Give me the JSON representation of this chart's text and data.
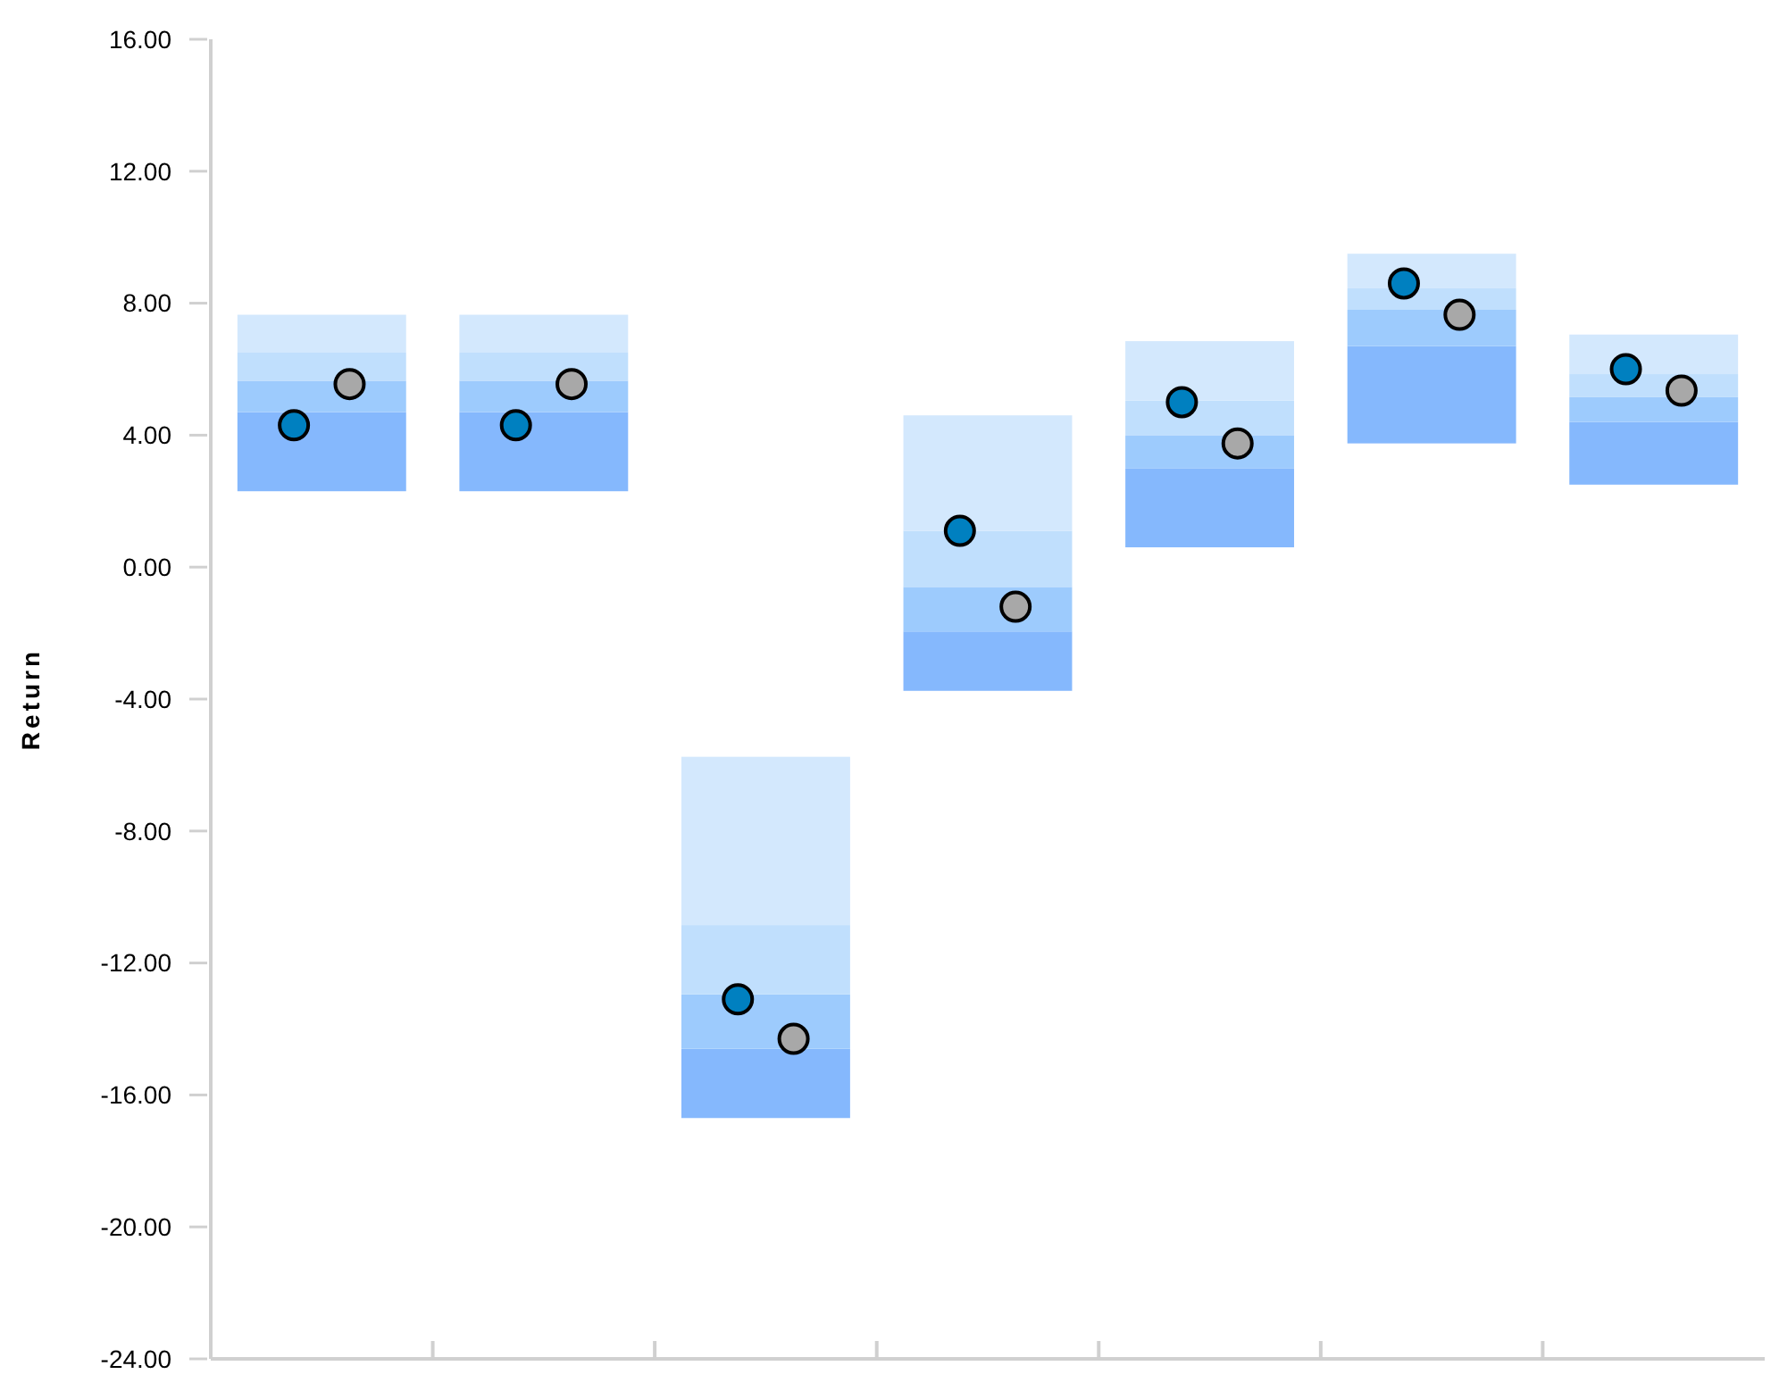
{
  "chart_data": {
    "type": "bar",
    "ylabel": "Return",
    "categories": [
      null,
      null,
      null,
      null,
      null,
      null,
      null
    ],
    "series": [
      {
        "color": "#85b8fd",
        "base": [
          2.3,
          2.3,
          -16.7,
          -3.75,
          0.6,
          3.75,
          2.5
        ],
        "values": [
          2.4,
          2.4,
          2.1,
          1.8,
          2.4,
          2.95,
          1.9
        ]
      },
      {
        "color": "#9dcbfd",
        "base": [
          4.7,
          4.7,
          -14.6,
          -1.95,
          3.0,
          6.7,
          4.4
        ],
        "values": [
          0.95,
          0.95,
          1.65,
          1.35,
          1.0,
          1.1,
          0.75
        ]
      },
      {
        "color": "#c0dffd",
        "base": [
          5.65,
          5.65,
          -12.95,
          -0.6,
          4.0,
          7.8,
          5.15
        ],
        "values": [
          0.85,
          0.85,
          2.1,
          1.7,
          1.05,
          0.65,
          0.7
        ]
      },
      {
        "color": "#d3e8fd",
        "base": [
          6.5,
          6.5,
          -10.85,
          1.1,
          5.05,
          8.45,
          5.85
        ],
        "values": [
          1.15,
          1.15,
          5.1,
          3.5,
          1.8,
          1.05,
          1.2
        ]
      },
      {
        "type": "scatter",
        "marker": "circle",
        "color": "#0080c0",
        "values": [
          4.3,
          4.3,
          -13.1,
          1.1,
          5.0,
          8.6,
          6.0
        ]
      },
      {
        "type": "scatter",
        "marker": "circle",
        "color": "#a8a8a8",
        "values": [
          5.55,
          5.55,
          -14.3,
          -1.2,
          3.75,
          7.65,
          5.35
        ]
      }
    ],
    "ylim": [
      -24,
      16
    ],
    "yticks": [
      {
        "value": 16,
        "label": "16.00"
      },
      {
        "value": 12,
        "label": "12.00"
      },
      {
        "value": 8,
        "label": "8.00"
      },
      {
        "value": 4,
        "label": "4.00"
      },
      {
        "value": 0,
        "label": "0.00"
      },
      {
        "value": -4,
        "label": "-4.00"
      },
      {
        "value": -8,
        "label": "-8.00"
      },
      {
        "value": -12,
        "label": "-12.00"
      },
      {
        "value": -16,
        "label": "-16.00"
      },
      {
        "value": -20,
        "label": "-20.00"
      },
      {
        "value": -24,
        "label": "-24.00"
      }
    ],
    "tick_labels": "y",
    "grid": false
  }
}
